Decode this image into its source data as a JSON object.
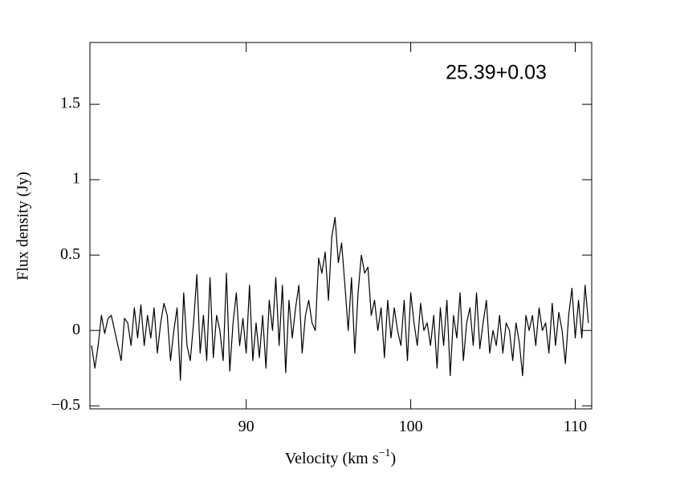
{
  "chart_data": {
    "type": "line",
    "annotation": "25.39+0.03",
    "xlabel": "Velocity (km s",
    "xlabel_sup": "−1",
    "xlabel_end": ")",
    "ylabel": "Flux density (Jy)",
    "color": "#000000",
    "xlim": [
      80.5,
      111
    ],
    "ylim": [
      -0.52,
      1.91
    ],
    "xticks": [
      90,
      100,
      110
    ],
    "yticks": [
      {
        "value": -0.5,
        "label": "−0.5"
      },
      0,
      0.5,
      1,
      1.5
    ],
    "x": [
      80.6,
      80.8,
      81.0,
      81.2,
      81.4,
      81.6,
      81.8,
      82.0,
      82.2,
      82.4,
      82.6,
      82.8,
      83.0,
      83.2,
      83.4,
      83.6,
      83.8,
      84.0,
      84.2,
      84.4,
      84.6,
      84.8,
      85.0,
      85.2,
      85.4,
      85.6,
      85.8,
      86.0,
      86.2,
      86.4,
      86.6,
      86.8,
      87.0,
      87.2,
      87.4,
      87.6,
      87.8,
      88.0,
      88.2,
      88.4,
      88.6,
      88.8,
      89.0,
      89.2,
      89.4,
      89.6,
      89.8,
      90.0,
      90.2,
      90.4,
      90.6,
      90.8,
      91.0,
      91.2,
      91.4,
      91.6,
      91.8,
      92.0,
      92.2,
      92.4,
      92.6,
      92.8,
      93.0,
      93.2,
      93.4,
      93.6,
      93.8,
      94.0,
      94.2,
      94.4,
      94.6,
      94.8,
      95.0,
      95.2,
      95.4,
      95.6,
      95.8,
      96.0,
      96.2,
      96.4,
      96.6,
      96.8,
      97.0,
      97.2,
      97.4,
      97.6,
      97.8,
      98.0,
      98.2,
      98.4,
      98.6,
      98.8,
      99.0,
      99.2,
      99.4,
      99.6,
      99.8,
      100.0,
      100.2,
      100.4,
      100.6,
      100.8,
      101.0,
      101.2,
      101.4,
      101.6,
      101.8,
      102.0,
      102.2,
      102.4,
      102.6,
      102.8,
      103.0,
      103.2,
      103.4,
      103.6,
      103.8,
      104.0,
      104.2,
      104.4,
      104.6,
      104.8,
      105.0,
      105.2,
      105.4,
      105.6,
      105.8,
      106.0,
      106.2,
      106.4,
      106.6,
      106.8,
      107.0,
      107.2,
      107.4,
      107.6,
      107.8,
      108.0,
      108.2,
      108.4,
      108.6,
      108.8,
      109.0,
      109.2,
      109.4,
      109.6,
      109.8,
      110.0,
      110.2,
      110.4,
      110.6,
      110.8
    ],
    "values": [
      -0.1,
      -0.25,
      -0.1,
      0.1,
      -0.02,
      0.08,
      0.1,
      0.0,
      -0.1,
      -0.2,
      0.08,
      0.05,
      -0.1,
      0.15,
      -0.05,
      0.17,
      -0.1,
      0.1,
      -0.05,
      0.15,
      -0.15,
      0.05,
      0.18,
      0.1,
      -0.2,
      0.0,
      0.15,
      -0.33,
      0.25,
      -0.1,
      -0.2,
      0.05,
      0.37,
      -0.15,
      0.1,
      -0.2,
      0.35,
      -0.18,
      0.1,
      0.0,
      -0.2,
      0.38,
      -0.27,
      0.05,
      0.25,
      -0.1,
      0.08,
      -0.15,
      0.3,
      -0.2,
      0.05,
      -0.18,
      0.1,
      -0.25,
      0.2,
      0.0,
      0.35,
      -0.1,
      0.3,
      -0.28,
      0.2,
      -0.05,
      0.15,
      0.3,
      -0.15,
      0.1,
      0.2,
      0.05,
      0.0,
      0.48,
      0.38,
      0.52,
      0.2,
      0.62,
      0.75,
      0.45,
      0.58,
      0.3,
      0.0,
      0.35,
      -0.15,
      0.25,
      0.5,
      0.38,
      0.42,
      0.1,
      0.2,
      0.0,
      0.15,
      -0.18,
      0.2,
      -0.05,
      0.15,
      0.0,
      -0.1,
      0.2,
      -0.2,
      0.25,
      0.05,
      -0.1,
      0.18,
      0.0,
      0.05,
      -0.1,
      0.1,
      -0.25,
      0.15,
      -0.1,
      0.2,
      -0.3,
      0.1,
      -0.05,
      0.25,
      -0.2,
      0.05,
      0.15,
      -0.1,
      0.25,
      -0.12,
      0.05,
      0.2,
      -0.15,
      0.0,
      -0.1,
      0.1,
      -0.15,
      0.05,
      0.0,
      -0.2,
      0.05,
      -0.08,
      -0.3,
      0.1,
      0.0,
      0.1,
      -0.1,
      0.15,
      0.0,
      0.05,
      -0.15,
      0.18,
      -0.1,
      0.12,
      0.0,
      -0.22,
      0.1,
      0.28,
      -0.05,
      0.2,
      -0.05,
      0.3,
      0.05
    ]
  }
}
